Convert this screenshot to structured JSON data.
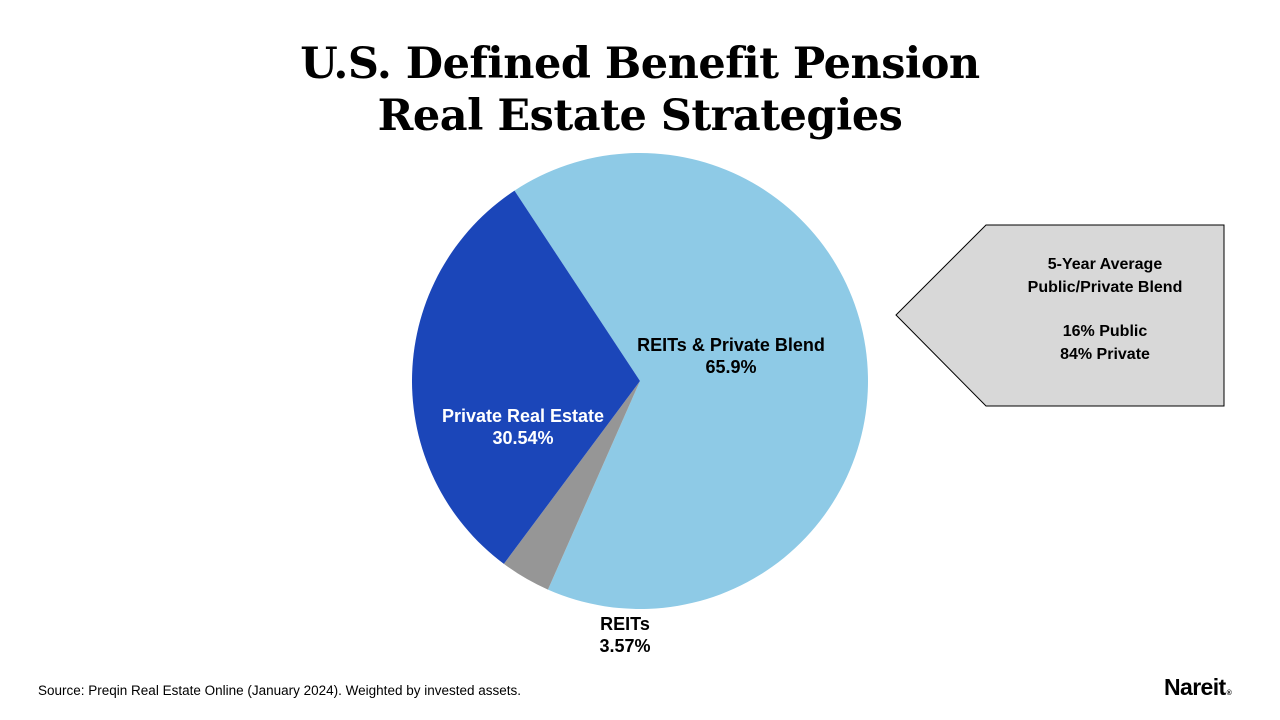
{
  "title": {
    "line1": "U.S. Defined Benefit Pension",
    "line2": "Real Estate Strategies"
  },
  "chart_data": {
    "type": "pie",
    "title": "U.S. Defined Benefit Pension Real Estate Strategies",
    "slices": [
      {
        "label": "REITs & Private Blend",
        "value_label": "65.9%",
        "value": 65.9,
        "color": "#8ecae6",
        "label_color": "#000000"
      },
      {
        "label": "REITs",
        "value_label": "3.57%",
        "value": 3.57,
        "color": "#969696",
        "label_color": "#000000"
      },
      {
        "label": "Private Real Estate",
        "value_label": "30.54%",
        "value": 30.54,
        "color": "#1b46b9",
        "label_color": "#ffffff"
      }
    ]
  },
  "callout": {
    "line1": "5-Year Average",
    "line2": "Public/Private Blend",
    "line3": "16% Public",
    "line4": "84% Private"
  },
  "source": "Source: Preqin Real Estate Online (January 2024). Weighted by invested assets.",
  "logo": {
    "text": "Nareit",
    "mark": "®"
  }
}
